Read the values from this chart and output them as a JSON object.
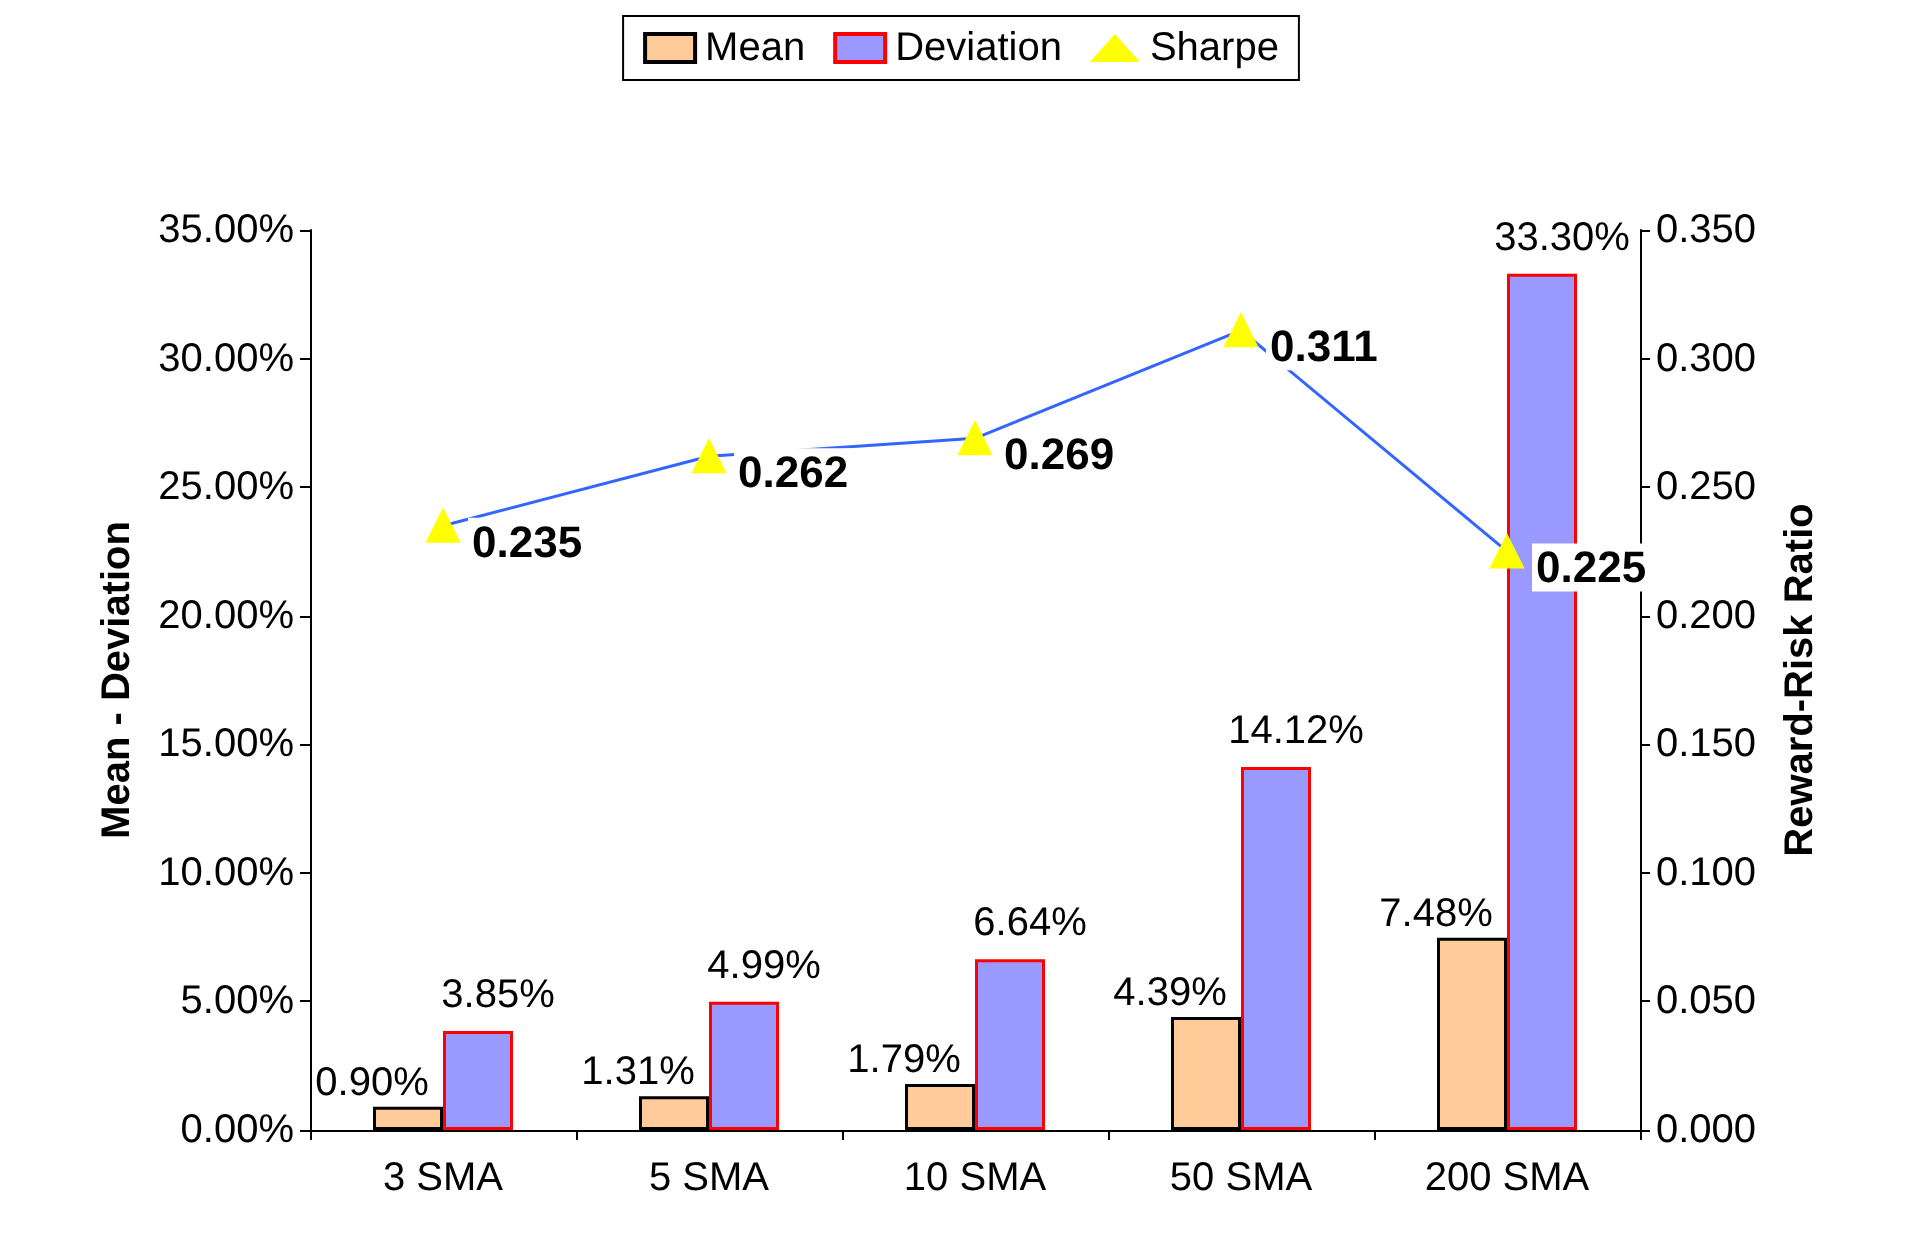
{
  "chart_data": {
    "type": "bar",
    "categories": [
      "3 SMA",
      "5 SMA",
      "10 SMA",
      "50 SMA",
      "200 SMA"
    ],
    "ylabel": "Mean - Deviation",
    "y2label": "Reward-Risk Ratio",
    "series": [
      {
        "name": "Mean",
        "color": "#ffcc99",
        "values": [
          0.9,
          1.31,
          1.79,
          4.39,
          7.48
        ],
        "value_labels": [
          "0.90%",
          "1.31%",
          "1.79%",
          "4.39%",
          "7.48%"
        ]
      },
      {
        "name": "Deviation",
        "color": "#9999ff",
        "values": [
          3.85,
          4.99,
          6.64,
          14.12,
          33.3
        ],
        "value_labels": [
          "3.85%",
          "4.99%",
          "6.64%",
          "14.12%",
          "33.30%"
        ]
      },
      {
        "name": "Sharpe",
        "type": "line",
        "axis": "y2",
        "color": "#3366ff",
        "values": [
          0.235,
          0.262,
          0.269,
          0.311,
          0.225
        ],
        "value_labels": [
          "0.235",
          "0.262",
          "0.269",
          "0.311",
          "0.225"
        ]
      }
    ],
    "ylim": [
      0,
      35
    ],
    "yticks": [
      {
        "value": 0,
        "label": "0.00%"
      },
      {
        "value": 5,
        "label": "5.00%"
      },
      {
        "value": 10,
        "label": "10.00%"
      },
      {
        "value": 15,
        "label": "15.00%"
      },
      {
        "value": 20,
        "label": "20.00%"
      },
      {
        "value": 25,
        "label": "25.00%"
      },
      {
        "value": 30,
        "label": "30.00%"
      },
      {
        "value": 35,
        "label": "35.00%"
      }
    ],
    "y2lim": [
      0,
      0.35
    ],
    "y2ticks": [
      {
        "value": 0,
        "label": "0.000"
      },
      {
        "value": 0.05,
        "label": "0.050"
      },
      {
        "value": 0.1,
        "label": "0.100"
      },
      {
        "value": 0.15,
        "label": "0.150"
      },
      {
        "value": 0.2,
        "label": "0.200"
      },
      {
        "value": 0.25,
        "label": "0.250"
      },
      {
        "value": 0.3,
        "label": "0.300"
      },
      {
        "value": 0.35,
        "label": "0.350"
      }
    ],
    "legend": "top",
    "marker": "triangle",
    "line_style": "solid",
    "grid": false
  }
}
